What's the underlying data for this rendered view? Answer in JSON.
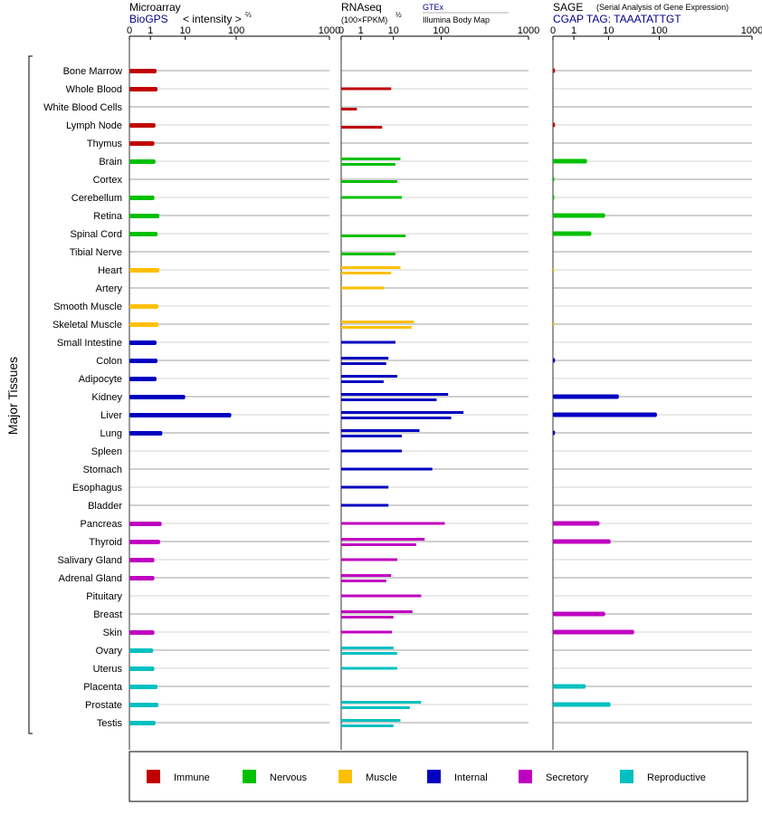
{
  "panel_headers": {
    "microarray": {
      "title": "Microarray",
      "source": "BioGPS",
      "unit_left": "< intensity >",
      "unit_exp": "⅔"
    },
    "rnaseq": {
      "title": "RNAseq",
      "unit_base": "(100×FPKM)",
      "unit_exp": "½",
      "source1": "GTEx",
      "source2": "Illumina Body Map"
    },
    "sage": {
      "title": "SAGE",
      "subtitle": "(Serial Analysis of Gene Expression)",
      "tag": "CGAP TAG: TAAATATTGT"
    }
  },
  "y_axis_label": "Major Tissues",
  "categories": {
    "Immune": "#c00000",
    "Nervous": "#00c000",
    "Muscle": "#ffc000",
    "Internal": "#0000c0",
    "Secretory": "#c000c0",
    "Reproductive": "#00c0c0"
  },
  "legend": [
    "Immune",
    "Nervous",
    "Muscle",
    "Internal",
    "Secretory",
    "Reproductive"
  ],
  "chart_data": {
    "type": "bar",
    "x_ticks": [
      "0",
      "1",
      "10",
      "100",
      "1000"
    ],
    "x_tick_values": [
      0,
      1,
      10,
      100,
      1000
    ],
    "x_range": [
      0,
      1000
    ],
    "x_scale": "log-like",
    "tissues": [
      {
        "name": "Bone Marrow",
        "cat": "Immune",
        "micro": 1.5,
        "gtex": null,
        "ibm": null,
        "sage": 0.1
      },
      {
        "name": "Whole Blood",
        "cat": "Immune",
        "micro": 1.6,
        "gtex": 8.5,
        "ibm": null,
        "sage": null
      },
      {
        "name": "White Blood Cells",
        "cat": "Immune",
        "micro": null,
        "gtex": null,
        "ibm": 0.8,
        "sage": null
      },
      {
        "name": "Lymph Node",
        "cat": "Immune",
        "micro": 1.4,
        "gtex": null,
        "ibm": 4.5,
        "sage": 0.1
      },
      {
        "name": "Thymus",
        "cat": "Immune",
        "micro": 1.3,
        "gtex": null,
        "ibm": null,
        "sage": null
      },
      {
        "name": "Brain",
        "cat": "Nervous",
        "micro": 1.4,
        "gtex": 14,
        "ibm": 11,
        "sage": 2.4
      },
      {
        "name": "Cortex",
        "cat": "Nervous",
        "micro": null,
        "gtex": null,
        "ibm": 12,
        "sage": 0.05
      },
      {
        "name": "Cerebellum",
        "cat": "Nervous",
        "micro": 1.3,
        "gtex": 15,
        "ibm": null,
        "sage": 0.05
      },
      {
        "name": "Retina",
        "cat": "Nervous",
        "micro": 1.8,
        "gtex": null,
        "ibm": null,
        "sage": 8
      },
      {
        "name": "Spinal Cord",
        "cat": "Nervous",
        "micro": 1.6,
        "gtex": null,
        "ibm": 18,
        "sage": 3.2
      },
      {
        "name": "Tibial Nerve",
        "cat": "Nervous",
        "micro": null,
        "gtex": null,
        "ibm": 11,
        "sage": null
      },
      {
        "name": "Heart",
        "cat": "Muscle",
        "micro": 1.8,
        "gtex": 14,
        "ibm": 8.5,
        "sage": 0.03
      },
      {
        "name": "Artery",
        "cat": "Muscle",
        "micro": null,
        "gtex": 5,
        "ibm": null,
        "sage": null
      },
      {
        "name": "Smooth Muscle",
        "cat": "Muscle",
        "micro": 1.7,
        "gtex": null,
        "ibm": null,
        "sage": null
      },
      {
        "name": "Skeletal Muscle",
        "cat": "Muscle",
        "micro": 1.7,
        "gtex": 27,
        "ibm": 24,
        "sage": 0.03
      },
      {
        "name": "Small Intestine",
        "cat": "Internal",
        "micro": 1.5,
        "gtex": 11,
        "ibm": null,
        "sage": null
      },
      {
        "name": "Colon",
        "cat": "Internal",
        "micro": 1.6,
        "gtex": 7,
        "ibm": 6,
        "sage": 0.1
      },
      {
        "name": "Adipocyte",
        "cat": "Internal",
        "micro": 1.5,
        "gtex": 12,
        "ibm": 5,
        "sage": null
      },
      {
        "name": "Kidney",
        "cat": "Internal",
        "micro": 10,
        "gtex": 120,
        "ibm": 80,
        "sage": 16
      },
      {
        "name": "Liver",
        "cat": "Internal",
        "micro": 80,
        "gtex": 180,
        "ibm": 130,
        "sage": 90
      },
      {
        "name": "Lung",
        "cat": "Internal",
        "micro": 2.2,
        "gtex": 35,
        "ibm": 15,
        "sage": 0.1
      },
      {
        "name": "Spleen",
        "cat": "Internal",
        "micro": null,
        "gtex": 15,
        "ibm": null,
        "sage": null
      },
      {
        "name": "Stomach",
        "cat": "Internal",
        "micro": null,
        "gtex": 65,
        "ibm": null,
        "sage": null
      },
      {
        "name": "Esophagus",
        "cat": "Internal",
        "micro": null,
        "gtex": 7,
        "ibm": null,
        "sage": null
      },
      {
        "name": "Bladder",
        "cat": "Internal",
        "micro": null,
        "gtex": 7,
        "ibm": null,
        "sage": null
      },
      {
        "name": "Pancreas",
        "cat": "Secretory",
        "micro": 2.1,
        "gtex": 110,
        "ibm": null,
        "sage": 5.5
      },
      {
        "name": "Thyroid",
        "cat": "Secretory",
        "micro": 1.9,
        "gtex": 45,
        "ibm": 30,
        "sage": 11
      },
      {
        "name": "Salivary Gland",
        "cat": "Secretory",
        "micro": 1.3,
        "gtex": 12,
        "ibm": null,
        "sage": null
      },
      {
        "name": "Adrenal Gland",
        "cat": "Secretory",
        "micro": 1.3,
        "gtex": 8.5,
        "ibm": 6,
        "sage": null
      },
      {
        "name": "Pituitary",
        "cat": "Secretory",
        "micro": null,
        "gtex": 38,
        "ibm": null,
        "sage": null
      },
      {
        "name": "Breast",
        "cat": "Secretory",
        "micro": null,
        "gtex": 25,
        "ibm": 10,
        "sage": 8
      },
      {
        "name": "Skin",
        "cat": "Secretory",
        "micro": 1.3,
        "gtex": 9,
        "ibm": null,
        "sage": 32
      },
      {
        "name": "Ovary",
        "cat": "Reproductive",
        "micro": 1.2,
        "gtex": 10,
        "ibm": 12,
        "sage": null
      },
      {
        "name": "Uterus",
        "cat": "Reproductive",
        "micro": 1.3,
        "gtex": 12,
        "ibm": null,
        "sage": null
      },
      {
        "name": "Placenta",
        "cat": "Reproductive",
        "micro": 1.6,
        "gtex": null,
        "ibm": null,
        "sage": 2.2
      },
      {
        "name": "Prostate",
        "cat": "Reproductive",
        "micro": 1.7,
        "gtex": 38,
        "ibm": 22,
        "sage": 11
      },
      {
        "name": "Testis",
        "cat": "Reproductive",
        "micro": 1.4,
        "gtex": 14,
        "ibm": 10,
        "sage": null
      }
    ]
  }
}
